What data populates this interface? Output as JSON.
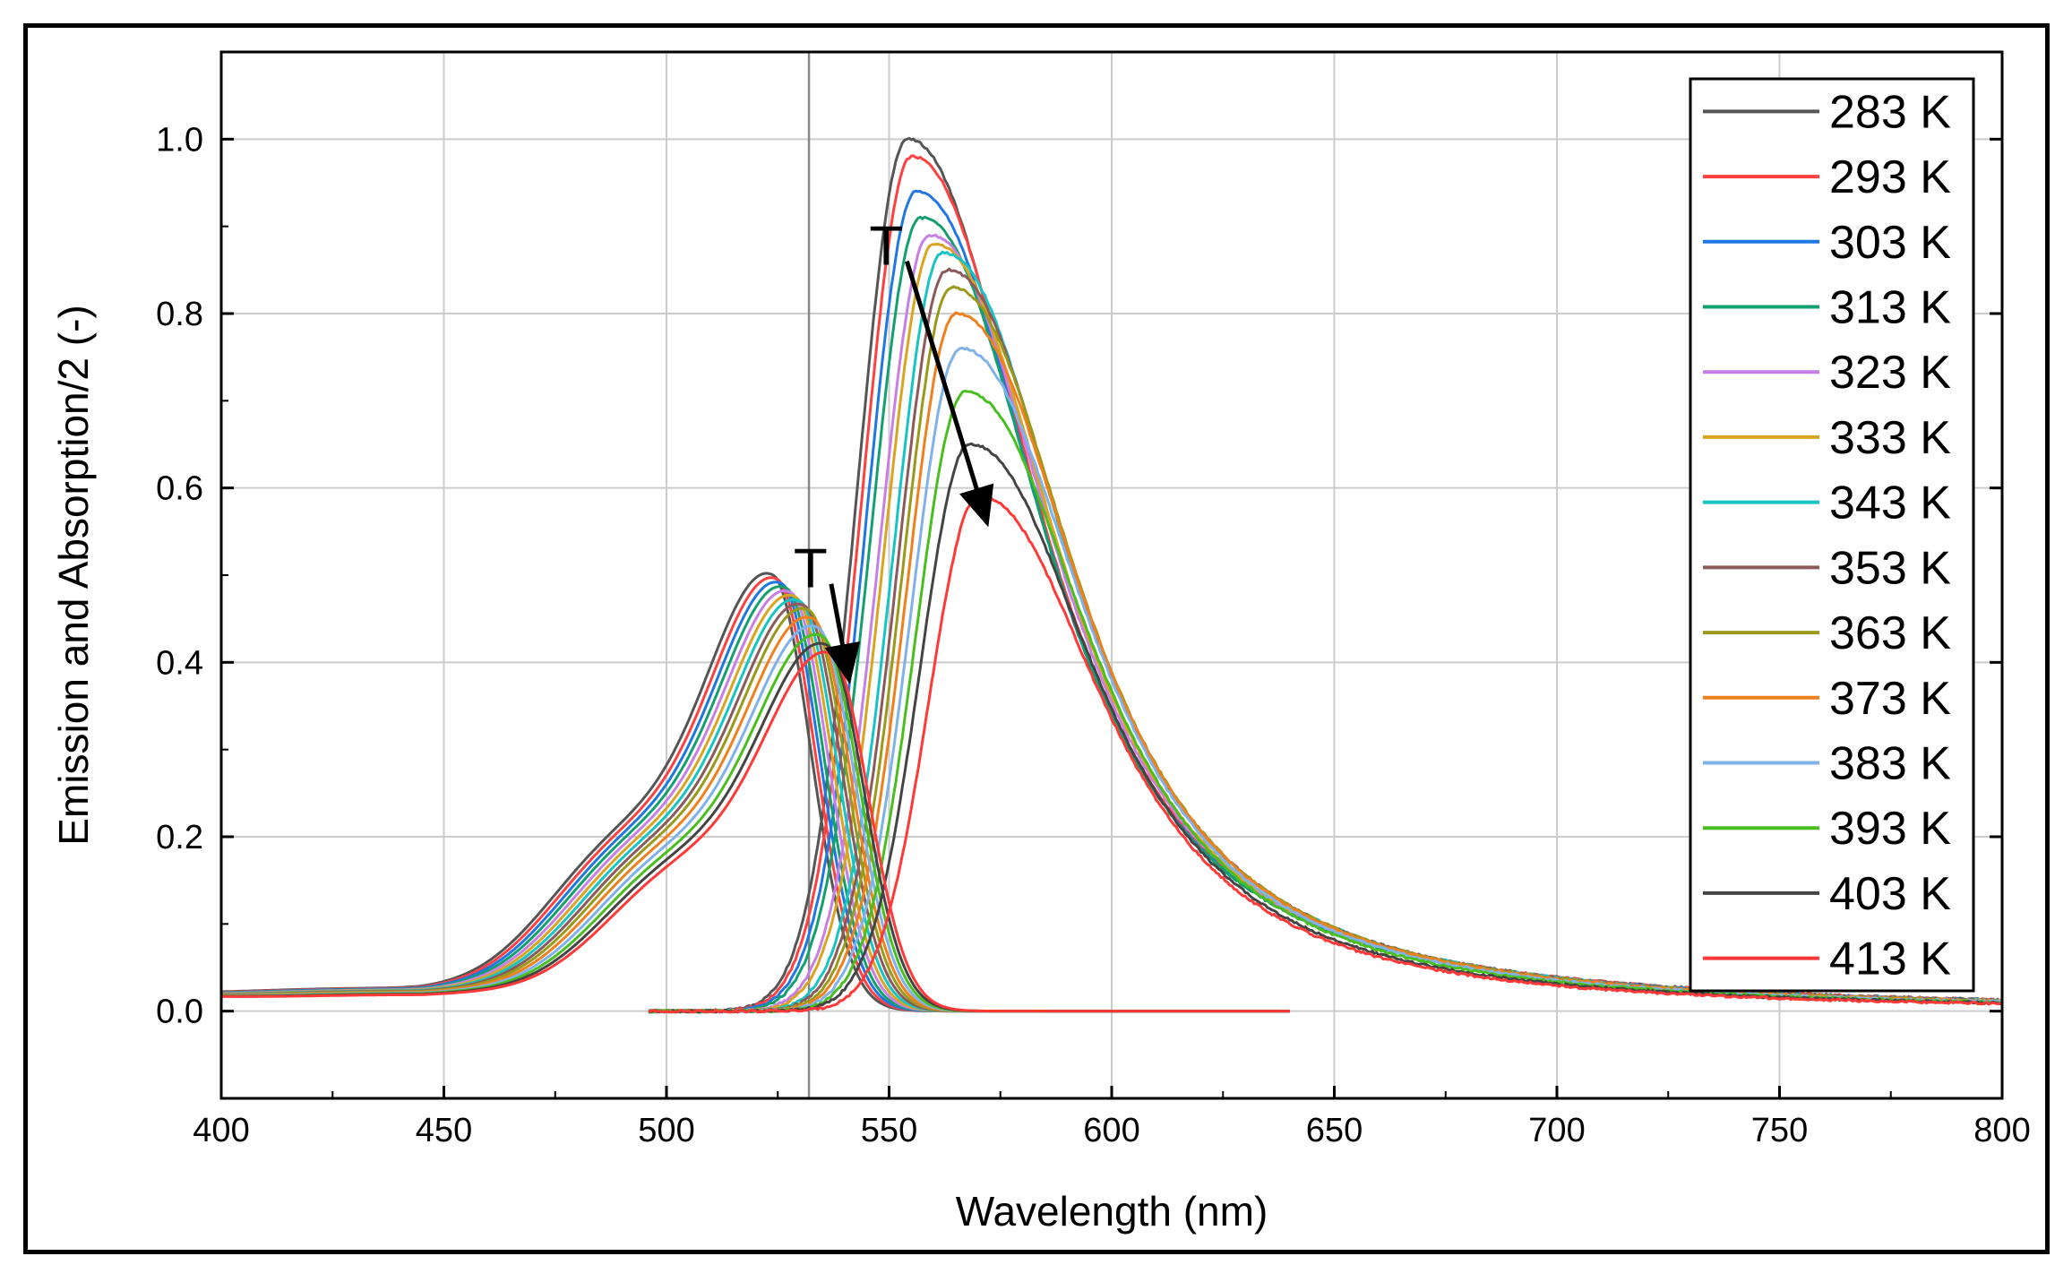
{
  "chart_data": {
    "type": "line",
    "xlabel": "Wavelength (nm)",
    "ylabel": "Emission and Absorption/2 (-)",
    "xlim": [
      400,
      800
    ],
    "ylim": [
      -0.1,
      1.1
    ],
    "xticks": [
      400,
      450,
      500,
      550,
      600,
      650,
      700,
      750,
      800
    ],
    "xtick_labels": [
      "400",
      "450",
      "500",
      "550",
      "600",
      "650",
      "700",
      "750",
      "800"
    ],
    "yticks": [
      0.0,
      0.2,
      0.4,
      0.6,
      0.8,
      1.0
    ],
    "ytick_labels": [
      "0.0",
      "0.2",
      "0.4",
      "0.6",
      "0.8",
      "1.0"
    ],
    "vertical_reference_x": 532,
    "grid": true,
    "legend_position": "top-right",
    "annotations": [
      {
        "text": "T",
        "from": [
          537,
          0.49
        ],
        "to": [
          541,
          0.38
        ]
      },
      {
        "text": "T",
        "from": [
          554,
          0.86
        ],
        "to": [
          572,
          0.56
        ]
      }
    ],
    "series": [
      {
        "name": "283 K",
        "color": "#555555",
        "abs_peak_x": 524,
        "abs_peak_y": 0.5,
        "em_peak_x": 554,
        "em_peak_y": 1.0
      },
      {
        "name": "293 K",
        "color": "#ff4040",
        "abs_peak_x": 525,
        "abs_peak_y": 0.495,
        "em_peak_x": 555,
        "em_peak_y": 0.98
      },
      {
        "name": "303 K",
        "color": "#1f77e4",
        "abs_peak_x": 526,
        "abs_peak_y": 0.49,
        "em_peak_x": 556,
        "em_peak_y": 0.94
      },
      {
        "name": "313 K",
        "color": "#14a06e",
        "abs_peak_x": 527,
        "abs_peak_y": 0.485,
        "em_peak_x": 557,
        "em_peak_y": 0.91
      },
      {
        "name": "323 K",
        "color": "#c77fe6",
        "abs_peak_x": 528,
        "abs_peak_y": 0.48,
        "em_peak_x": 559,
        "em_peak_y": 0.89
      },
      {
        "name": "333 K",
        "color": "#d9a520",
        "abs_peak_x": 529,
        "abs_peak_y": 0.475,
        "em_peak_x": 560,
        "em_peak_y": 0.88
      },
      {
        "name": "343 K",
        "color": "#17c4c4",
        "abs_peak_x": 530,
        "abs_peak_y": 0.47,
        "em_peak_x": 562,
        "em_peak_y": 0.87
      },
      {
        "name": "353 K",
        "color": "#8b5a5a",
        "abs_peak_x": 531,
        "abs_peak_y": 0.465,
        "em_peak_x": 563,
        "em_peak_y": 0.85
      },
      {
        "name": "363 K",
        "color": "#9a9a1a",
        "abs_peak_x": 532,
        "abs_peak_y": 0.46,
        "em_peak_x": 564,
        "em_peak_y": 0.83
      },
      {
        "name": "373 K",
        "color": "#f07f1e",
        "abs_peak_x": 533,
        "abs_peak_y": 0.45,
        "em_peak_x": 565,
        "em_peak_y": 0.8
      },
      {
        "name": "383 K",
        "color": "#7fb2ea",
        "abs_peak_x": 534,
        "abs_peak_y": 0.44,
        "em_peak_x": 566,
        "em_peak_y": 0.76
      },
      {
        "name": "393 K",
        "color": "#49bf1f",
        "abs_peak_x": 535,
        "abs_peak_y": 0.43,
        "em_peak_x": 567,
        "em_peak_y": 0.71
      },
      {
        "name": "403 K",
        "color": "#444444",
        "abs_peak_x": 536,
        "abs_peak_y": 0.42,
        "em_peak_x": 568,
        "em_peak_y": 0.65
      },
      {
        "name": "413 K",
        "color": "#ff3838",
        "abs_peak_x": 537,
        "abs_peak_y": 0.41,
        "em_peak_x": 570,
        "em_peak_y": 0.59
      }
    ]
  }
}
